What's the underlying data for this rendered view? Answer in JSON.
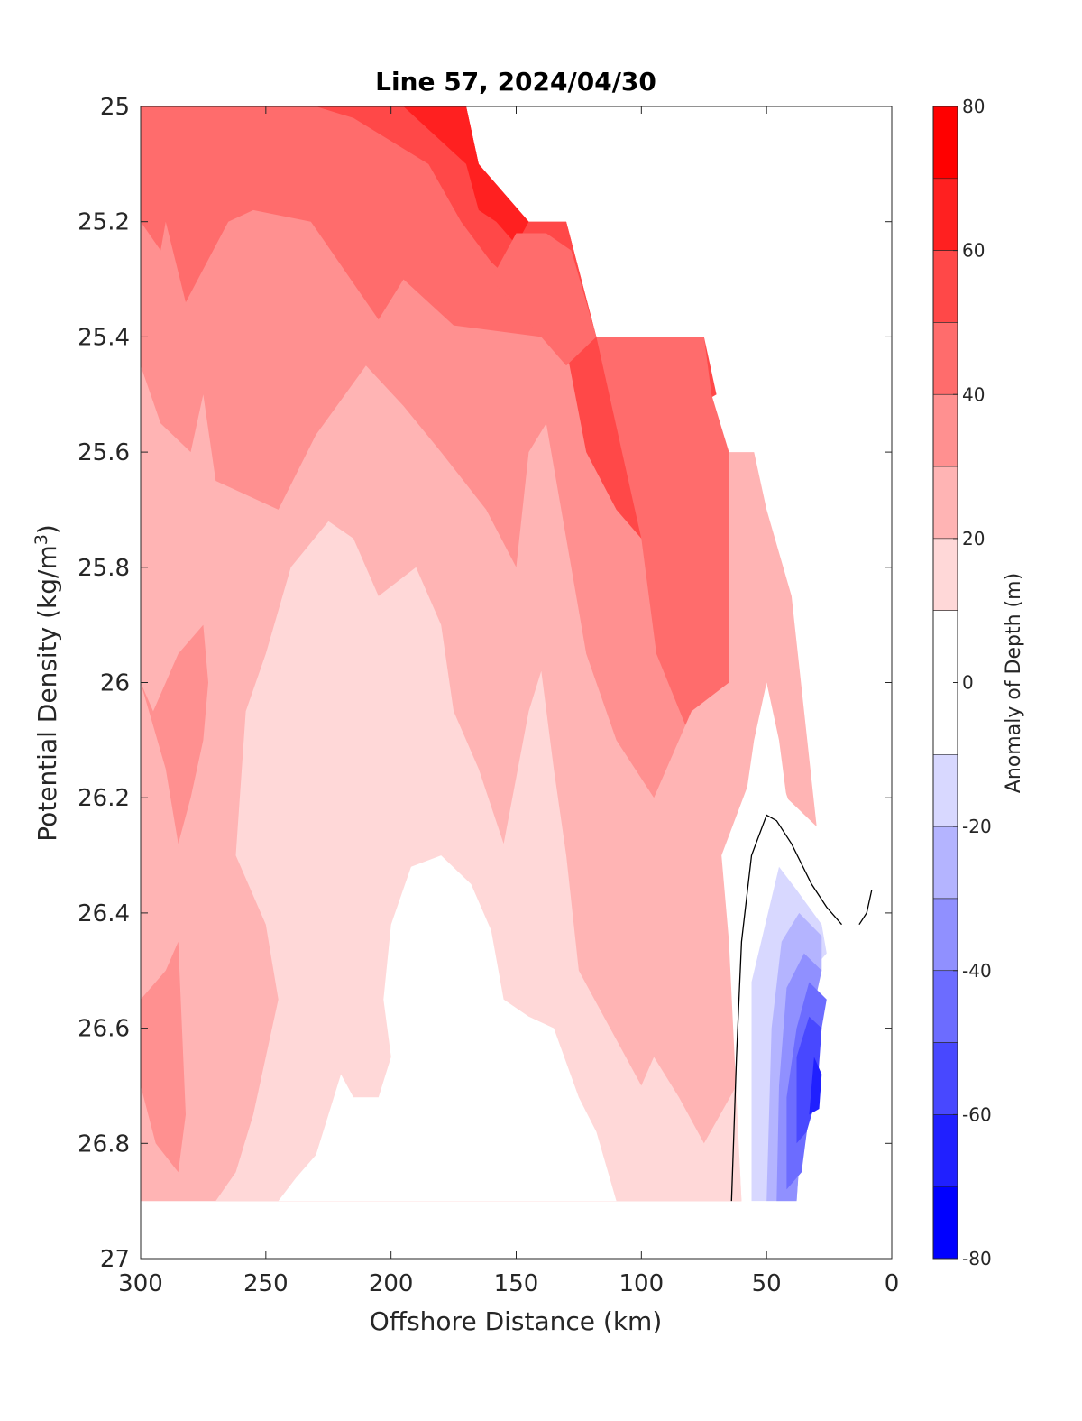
{
  "chart_data": {
    "type": "filled-contour",
    "title": "Line 57, 2024/04/30",
    "xlabel": "Offshore Distance (km)",
    "ylabel_main": "Potential Density (kg/m",
    "ylabel_sup": "3",
    "ylabel_close": ")",
    "xlim": [
      300,
      0
    ],
    "ylim": [
      25,
      27
    ],
    "x_reversed": true,
    "y_reversed": true,
    "x_ticks": [
      "300",
      "250",
      "200",
      "150",
      "100",
      "50",
      "0"
    ],
    "x_tick_values": [
      300,
      250,
      200,
      150,
      100,
      50,
      0
    ],
    "y_ticks": [
      "25",
      "25.2",
      "25.4",
      "25.6",
      "25.8",
      "26",
      "26.2",
      "26.4",
      "26.6",
      "26.8",
      "27"
    ],
    "y_tick_values": [
      25,
      25.2,
      25.4,
      25.6,
      25.8,
      26,
      26.2,
      26.4,
      26.6,
      26.8,
      27
    ],
    "colorbar": {
      "label": "Anomaly of Depth (m)",
      "range": [
        -80,
        80
      ],
      "levels": [
        -80,
        -70,
        -60,
        -50,
        -40,
        -30,
        -20,
        -10,
        10,
        20,
        30,
        40,
        50,
        60,
        70,
        80
      ],
      "ticks": [
        "80",
        "60",
        "40",
        "20",
        "0",
        "-20",
        "-40",
        "-60",
        "-80"
      ],
      "tick_values": [
        80,
        60,
        40,
        20,
        0,
        -20,
        -40,
        -60,
        -80
      ],
      "colors": {
        "70_80": "#ff0000",
        "60_70": "#ff2020",
        "50_60": "#ff4848",
        "40_50": "#ff6c6c",
        "30_40": "#ff9090",
        "20_30": "#ffb4b4",
        "10_20": "#ffd8d8",
        "m10_10": "#ffffff",
        "m20_m10": "#d8d8ff",
        "m30_m20": "#b4b4ff",
        "m40_m30": "#9090ff",
        "m50_m40": "#6c6cff",
        "m60_m50": "#4848ff",
        "m70_m60": "#2020ff",
        "m80_m70": "#0000ff"
      }
    },
    "regions": [
      {
        "level": "30_40",
        "points": [
          [
            300,
            25
          ],
          [
            300,
            26.9
          ],
          [
            60,
            26.9
          ],
          [
            65,
            26.3
          ],
          [
            70,
            25.6
          ],
          [
            75,
            25.5
          ],
          [
            118,
            25.4
          ],
          [
            130,
            25.2
          ],
          [
            145,
            25.2
          ],
          [
            165,
            25.1
          ],
          [
            170,
            25
          ]
        ]
      },
      {
        "level": "40_50",
        "points": [
          [
            300,
            25
          ],
          [
            300,
            25.2
          ],
          [
            292,
            25.25
          ],
          [
            290,
            25.2
          ],
          [
            282,
            25.34
          ],
          [
            265,
            25.2
          ],
          [
            255,
            25.18
          ],
          [
            232,
            25.2
          ],
          [
            205,
            25.37
          ],
          [
            195,
            25.3
          ],
          [
            175,
            25.38
          ],
          [
            140,
            25.4
          ],
          [
            135,
            25.38
          ],
          [
            105,
            25.6
          ],
          [
            100,
            25.7
          ],
          [
            92,
            25.72
          ],
          [
            86,
            25.6
          ],
          [
            70,
            25.55
          ],
          [
            72,
            25.5
          ],
          [
            118,
            25.4
          ],
          [
            130,
            25.2
          ],
          [
            145,
            25.2
          ],
          [
            165,
            25.1
          ],
          [
            170,
            25
          ]
        ]
      },
      {
        "level": "50_60",
        "points": [
          [
            230,
            25
          ],
          [
            170,
            25
          ],
          [
            165,
            25.1
          ],
          [
            145,
            25.2
          ],
          [
            130,
            25.2
          ],
          [
            118,
            25.4
          ],
          [
            75,
            25.4
          ],
          [
            70,
            25.5
          ],
          [
            78,
            25.52
          ],
          [
            90,
            25.6
          ],
          [
            100,
            25.75
          ],
          [
            110,
            25.7
          ],
          [
            122,
            25.6
          ],
          [
            130,
            25.42
          ],
          [
            140,
            25.35
          ],
          [
            160,
            25.27
          ],
          [
            172,
            25.2
          ],
          [
            185,
            25.1
          ],
          [
            215,
            25.02
          ]
        ]
      },
      {
        "level": "60_70",
        "points": [
          [
            195,
            25
          ],
          [
            170,
            25
          ],
          [
            165,
            25.1
          ],
          [
            145,
            25.2
          ],
          [
            150,
            25.24
          ],
          [
            158,
            25.2
          ],
          [
            165,
            25.18
          ],
          [
            170,
            25.1
          ]
        ]
      },
      {
        "level": "60_70",
        "points": [
          [
            118,
            25.4
          ],
          [
            105,
            25.4
          ],
          [
            100,
            25.5
          ],
          [
            103,
            25.54
          ],
          [
            108,
            25.52
          ],
          [
            112,
            25.45
          ]
        ]
      },
      {
        "level": "40_50",
        "points": [
          [
            160,
            25.3
          ],
          [
            130,
            25.45
          ],
          [
            118,
            25.4
          ],
          [
            100,
            25.75
          ],
          [
            94,
            25.95
          ],
          [
            80,
            26.1
          ],
          [
            65,
            26.2
          ],
          [
            65,
            25.6
          ],
          [
            72,
            25.5
          ],
          [
            75,
            25.4
          ],
          [
            100,
            25.4
          ],
          [
            118,
            25.4
          ],
          [
            128,
            25.25
          ],
          [
            138,
            25.22
          ],
          [
            150,
            25.22
          ]
        ]
      },
      {
        "level": "40_50",
        "points": [
          [
            295,
            25.7
          ],
          [
            290,
            25.72
          ],
          [
            287,
            25.8
          ],
          [
            285,
            26.0
          ],
          [
            288,
            26.12
          ],
          [
            292,
            26.05
          ],
          [
            295,
            25.9
          ]
        ]
      },
      {
        "level": "20_30",
        "points": [
          [
            300,
            25.45
          ],
          [
            300,
            26.9
          ],
          [
            60,
            26.9
          ],
          [
            62,
            26.5
          ],
          [
            65,
            26.4
          ],
          [
            55,
            26.1
          ],
          [
            50,
            26.0
          ],
          [
            45,
            26.1
          ],
          [
            42,
            26.2
          ],
          [
            30,
            26.25
          ],
          [
            40,
            25.85
          ],
          [
            50,
            25.7
          ],
          [
            55,
            25.6
          ],
          [
            65,
            25.6
          ],
          [
            65,
            26.0
          ],
          [
            80,
            26.05
          ],
          [
            95,
            26.2
          ],
          [
            110,
            26.1
          ],
          [
            122,
            25.95
          ],
          [
            130,
            25.75
          ],
          [
            138,
            25.55
          ],
          [
            145,
            25.6
          ],
          [
            150,
            25.8
          ],
          [
            162,
            25.7
          ],
          [
            180,
            25.6
          ],
          [
            195,
            25.52
          ],
          [
            210,
            25.45
          ],
          [
            230,
            25.57
          ],
          [
            245,
            25.7
          ],
          [
            270,
            25.65
          ],
          [
            275,
            25.5
          ],
          [
            280,
            25.6
          ],
          [
            292,
            25.55
          ]
        ]
      },
      {
        "level": "30_40",
        "points": [
          [
            290,
            26.5
          ],
          [
            285,
            26.45
          ],
          [
            282,
            26.75
          ],
          [
            285,
            26.85
          ],
          [
            294,
            26.8
          ],
          [
            300,
            26.7
          ],
          [
            300,
            26.55
          ]
        ]
      },
      {
        "level": "30_40",
        "points": [
          [
            300,
            26.0
          ],
          [
            290,
            26.15
          ],
          [
            285,
            26.28
          ],
          [
            280,
            26.2
          ],
          [
            275,
            26.1
          ],
          [
            273,
            26.0
          ],
          [
            275,
            25.9
          ],
          [
            285,
            25.95
          ],
          [
            295,
            26.05
          ]
        ]
      },
      {
        "level": "10_20",
        "points": [
          [
            270,
            26.9
          ],
          [
            60,
            26.9
          ],
          [
            62,
            26.7
          ],
          [
            75,
            26.8
          ],
          [
            85,
            26.72
          ],
          [
            95,
            26.65
          ],
          [
            100,
            26.7
          ],
          [
            110,
            26.62
          ],
          [
            125,
            26.5
          ],
          [
            130,
            26.3
          ],
          [
            135,
            26.15
          ],
          [
            140,
            25.98
          ],
          [
            145,
            26.05
          ],
          [
            155,
            26.28
          ],
          [
            165,
            26.15
          ],
          [
            175,
            26.05
          ],
          [
            180,
            25.9
          ],
          [
            190,
            25.8
          ],
          [
            205,
            25.85
          ],
          [
            215,
            25.75
          ],
          [
            225,
            25.72
          ],
          [
            240,
            25.8
          ],
          [
            250,
            25.95
          ],
          [
            258,
            26.05
          ],
          [
            262,
            26.3
          ],
          [
            250,
            26.42
          ],
          [
            245,
            26.55
          ],
          [
            255,
            26.75
          ],
          [
            262,
            26.85
          ]
        ]
      },
      {
        "level": "10_20",
        "points": [
          [
            55,
            26.2
          ],
          [
            48,
            26.15
          ],
          [
            42,
            26.25
          ],
          [
            34,
            26.32
          ],
          [
            28,
            26.38
          ],
          [
            45,
            26.28
          ],
          [
            52,
            26.33
          ]
        ]
      },
      {
        "level": "m10_10",
        "points": [
          [
            245,
            26.9
          ],
          [
            60,
            26.9
          ],
          [
            65,
            26.45
          ],
          [
            68,
            26.3
          ],
          [
            55,
            26.15
          ],
          [
            48,
            26.12
          ],
          [
            40,
            26.22
          ],
          [
            30,
            26.32
          ],
          [
            22,
            26.42
          ],
          [
            60,
            26.9
          ]
        ]
      },
      {
        "level": "m10_10",
        "points": [
          [
            245,
            26.9
          ],
          [
            110,
            26.9
          ],
          [
            118,
            26.78
          ],
          [
            125,
            26.72
          ],
          [
            135,
            26.6
          ],
          [
            145,
            26.58
          ],
          [
            155,
            26.55
          ],
          [
            160,
            26.43
          ],
          [
            168,
            26.35
          ],
          [
            180,
            26.3
          ],
          [
            192,
            26.32
          ],
          [
            200,
            26.42
          ],
          [
            203,
            26.55
          ],
          [
            200,
            26.65
          ],
          [
            205,
            26.72
          ],
          [
            215,
            26.72
          ],
          [
            220,
            26.68
          ],
          [
            225,
            26.75
          ],
          [
            230,
            26.82
          ],
          [
            238,
            26.86
          ]
        ]
      },
      {
        "level": "m20_m10",
        "points": [
          [
            56,
            26.9
          ],
          [
            56,
            26.52
          ],
          [
            45,
            26.32
          ],
          [
            38,
            26.36
          ],
          [
            28,
            26.42
          ],
          [
            26,
            26.47
          ],
          [
            32,
            26.5
          ],
          [
            38,
            26.9
          ]
        ]
      },
      {
        "level": "m30_m20",
        "points": [
          [
            50,
            26.9
          ],
          [
            48,
            26.6
          ],
          [
            44,
            26.45
          ],
          [
            37,
            26.4
          ],
          [
            28,
            26.44
          ],
          [
            28,
            26.5
          ],
          [
            33,
            26.55
          ],
          [
            38,
            26.9
          ]
        ]
      },
      {
        "level": "m40_m30",
        "points": [
          [
            46,
            26.9
          ],
          [
            45,
            26.7
          ],
          [
            42,
            26.53
          ],
          [
            35,
            26.47
          ],
          [
            28,
            26.5
          ],
          [
            33,
            26.6
          ],
          [
            38,
            26.9
          ]
        ]
      },
      {
        "level": "m50_m40",
        "points": [
          [
            42,
            26.88
          ],
          [
            42,
            26.72
          ],
          [
            38,
            26.6
          ],
          [
            33,
            26.52
          ],
          [
            26,
            26.55
          ],
          [
            30,
            26.65
          ],
          [
            36,
            26.85
          ]
        ]
      },
      {
        "level": "m60_m50",
        "points": [
          [
            38,
            26.8
          ],
          [
            38,
            26.65
          ],
          [
            33,
            26.58
          ],
          [
            28,
            26.6
          ],
          [
            30,
            26.72
          ],
          [
            34,
            26.78
          ]
        ]
      },
      {
        "level": "m70_m60",
        "points": [
          [
            33,
            26.75
          ],
          [
            31,
            26.65
          ],
          [
            28,
            26.68
          ],
          [
            29,
            26.74
          ]
        ]
      }
    ],
    "zero_contour": [
      [
        [
          64,
          26.9
        ],
        [
          62,
          26.65
        ],
        [
          60,
          26.45
        ],
        [
          56,
          26.3
        ],
        [
          50,
          26.23
        ],
        [
          46,
          26.24
        ],
        [
          40,
          26.28
        ],
        [
          32,
          26.35
        ],
        [
          26,
          26.39
        ],
        [
          20,
          26.42
        ]
      ],
      [
        [
          13,
          26.42
        ],
        [
          10,
          26.4
        ],
        [
          8,
          26.36
        ]
      ]
    ],
    "white_top_region": [
      [
        175,
        25
      ],
      [
        300,
        25
      ],
      [
        300,
        25
      ],
      [
        170,
        25
      ]
    ]
  }
}
